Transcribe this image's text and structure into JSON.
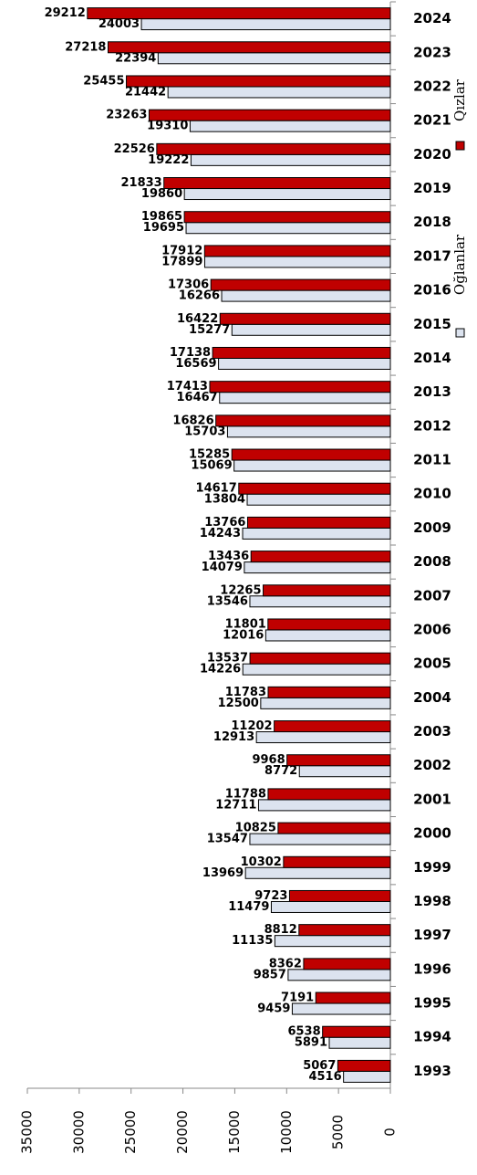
{
  "chart_data": {
    "type": "bar",
    "orientation": "horizontal",
    "categories": [
      "1993",
      "1994",
      "1995",
      "1996",
      "1997",
      "1998",
      "1999",
      "2000",
      "2001",
      "2002",
      "2003",
      "2004",
      "2005",
      "2006",
      "2007",
      "2008",
      "2009",
      "2010",
      "2011",
      "2012",
      "2013",
      "2014",
      "2015",
      "2016",
      "2017",
      "2018",
      "2019",
      "2020",
      "2021",
      "2022",
      "2023",
      "2024"
    ],
    "series": [
      {
        "name": "Oğlanlar",
        "color": "#dce3ef",
        "values": [
          4516,
          5891,
          9459,
          9857,
          11135,
          11479,
          13969,
          13547,
          12711,
          8772,
          12913,
          12500,
          14226,
          12016,
          13546,
          14079,
          14243,
          13804,
          15069,
          15703,
          16467,
          16569,
          15277,
          16266,
          17899,
          19695,
          19860,
          19222,
          19310,
          21442,
          22394,
          24003
        ]
      },
      {
        "name": "Qızlar",
        "color": "#c00000",
        "values": [
          5067,
          6538,
          7191,
          8362,
          8812,
          9723,
          10302,
          10825,
          11788,
          9968,
          11202,
          11783,
          13537,
          11801,
          12265,
          13436,
          13766,
          14617,
          15285,
          16826,
          17413,
          17138,
          16422,
          17306,
          17912,
          19865,
          21833,
          22526,
          23263,
          25455,
          27218,
          29212
        ]
      }
    ],
    "ylim": [
      0,
      35000
    ],
    "yticks": [
      0,
      5000,
      10000,
      15000,
      20000,
      25000,
      30000,
      35000
    ]
  }
}
